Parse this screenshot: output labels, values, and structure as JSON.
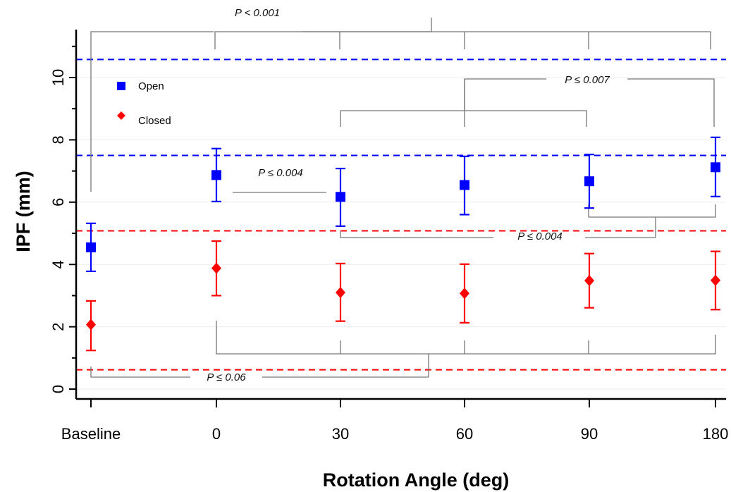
{
  "chart_data": {
    "type": "scatter",
    "xlabel": "Rotation Angle (deg)",
    "ylabel": "IPF (mm)",
    "categories": [
      "Baseline",
      "0",
      "30",
      "60",
      "90",
      "180"
    ],
    "ylim": [
      -0.3,
      11.6
    ],
    "yticks": [
      0,
      2,
      4,
      6,
      8,
      10
    ],
    "grid": "horizontal light",
    "legend_position": "top-left",
    "series": [
      {
        "name": "Open",
        "color": "#0000ff",
        "marker": "square",
        "values": [
          4.55,
          6.87,
          6.17,
          6.55,
          6.67,
          7.12
        ],
        "err_low": [
          3.78,
          6.02,
          5.23,
          5.6,
          5.81,
          6.18
        ],
        "err_high": [
          5.32,
          7.72,
          7.08,
          7.47,
          7.53,
          8.08
        ]
      },
      {
        "name": "Closed",
        "color": "#ff0000",
        "marker": "diamond",
        "values": [
          2.07,
          3.88,
          3.1,
          3.07,
          3.48,
          3.49
        ],
        "err_low": [
          1.24,
          3.0,
          2.18,
          2.13,
          2.61,
          2.55
        ],
        "err_high": [
          2.83,
          4.75,
          4.03,
          4.01,
          4.35,
          4.42
        ]
      }
    ],
    "reference_lines": [
      {
        "y": 10.58,
        "color": "#0000ff"
      },
      {
        "y": 7.5,
        "color": "#0000ff"
      },
      {
        "y": 5.08,
        "color": "#ff0000"
      },
      {
        "y": 0.62,
        "color": "#ff0000"
      }
    ],
    "annotations": [
      "P < 0.001",
      "P ≤ 0.007",
      "P ≤ 0.004",
      "P ≤ 0.004",
      "P ≤ 0.06"
    ]
  }
}
